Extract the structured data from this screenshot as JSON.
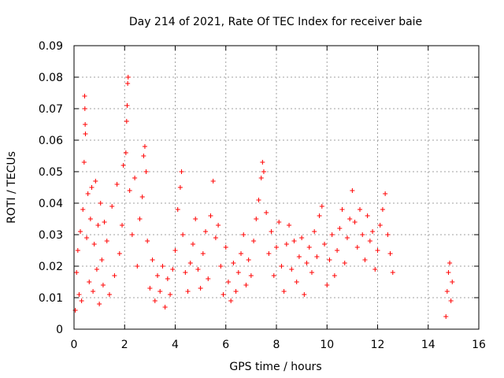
{
  "chart_data": {
    "type": "scatter",
    "title": "Day 214 of 2021, Rate Of TEC Index for receiver baie",
    "xlabel": "GPS time / hours",
    "ylabel": "ROTI / TECUs",
    "xlim": [
      0,
      16
    ],
    "ylim": [
      0,
      0.09
    ],
    "x_ticks": [
      "0",
      "2",
      "4",
      "6",
      "8",
      "10",
      "12",
      "14",
      "16"
    ],
    "y_ticks": [
      "0",
      "0.01",
      "0.02",
      "0.03",
      "0.04",
      "0.05",
      "0.06",
      "0.07",
      "0.08",
      "0.09"
    ],
    "grid": true,
    "marker": "+",
    "color": "#ff0000",
    "series": [
      {
        "points": [
          [
            0.05,
            0.006
          ],
          [
            0.1,
            0.018
          ],
          [
            0.15,
            0.025
          ],
          [
            0.2,
            0.011
          ],
          [
            0.25,
            0.031
          ],
          [
            0.3,
            0.009
          ],
          [
            0.35,
            0.038
          ],
          [
            0.4,
            0.053
          ],
          [
            0.42,
            0.074
          ],
          [
            0.43,
            0.07
          ],
          [
            0.44,
            0.065
          ],
          [
            0.45,
            0.062
          ],
          [
            0.5,
            0.029
          ],
          [
            0.55,
            0.043
          ],
          [
            0.6,
            0.015
          ],
          [
            0.65,
            0.035
          ],
          [
            0.7,
            0.045
          ],
          [
            0.75,
            0.012
          ],
          [
            0.8,
            0.027
          ],
          [
            0.85,
            0.047
          ],
          [
            0.9,
            0.019
          ],
          [
            0.95,
            0.033
          ],
          [
            1.0,
            0.008
          ],
          [
            1.05,
            0.04
          ],
          [
            1.1,
            0.022
          ],
          [
            1.15,
            0.014
          ],
          [
            1.2,
            0.034
          ],
          [
            1.3,
            0.028
          ],
          [
            1.4,
            0.011
          ],
          [
            1.5,
            0.039
          ],
          [
            1.6,
            0.017
          ],
          [
            1.7,
            0.046
          ],
          [
            1.8,
            0.024
          ],
          [
            1.9,
            0.033
          ],
          [
            1.95,
            0.052
          ],
          [
            2.05,
            0.056
          ],
          [
            2.08,
            0.066
          ],
          [
            2.1,
            0.071
          ],
          [
            2.12,
            0.078
          ],
          [
            2.14,
            0.08
          ],
          [
            2.2,
            0.044
          ],
          [
            2.3,
            0.03
          ],
          [
            2.4,
            0.048
          ],
          [
            2.5,
            0.02
          ],
          [
            2.6,
            0.035
          ],
          [
            2.7,
            0.042
          ],
          [
            2.75,
            0.055
          ],
          [
            2.8,
            0.058
          ],
          [
            2.85,
            0.05
          ],
          [
            2.9,
            0.028
          ],
          [
            3.0,
            0.013
          ],
          [
            3.1,
            0.022
          ],
          [
            3.2,
            0.009
          ],
          [
            3.3,
            0.017
          ],
          [
            3.4,
            0.012
          ],
          [
            3.5,
            0.02
          ],
          [
            3.6,
            0.007
          ],
          [
            3.7,
            0.016
          ],
          [
            3.8,
            0.011
          ],
          [
            3.9,
            0.019
          ],
          [
            4.0,
            0.025
          ],
          [
            4.1,
            0.038
          ],
          [
            4.2,
            0.045
          ],
          [
            4.25,
            0.05
          ],
          [
            4.3,
            0.03
          ],
          [
            4.4,
            0.018
          ],
          [
            4.5,
            0.012
          ],
          [
            4.6,
            0.021
          ],
          [
            4.7,
            0.027
          ],
          [
            4.8,
            0.035
          ],
          [
            4.9,
            0.019
          ],
          [
            5.0,
            0.013
          ],
          [
            5.1,
            0.024
          ],
          [
            5.2,
            0.031
          ],
          [
            5.3,
            0.016
          ],
          [
            5.4,
            0.036
          ],
          [
            5.5,
            0.047
          ],
          [
            5.6,
            0.029
          ],
          [
            5.7,
            0.033
          ],
          [
            5.8,
            0.02
          ],
          [
            5.9,
            0.011
          ],
          [
            6.0,
            0.026
          ],
          [
            6.1,
            0.015
          ],
          [
            6.2,
            0.009
          ],
          [
            6.3,
            0.021
          ],
          [
            6.4,
            0.012
          ],
          [
            6.5,
            0.018
          ],
          [
            6.6,
            0.024
          ],
          [
            6.7,
            0.03
          ],
          [
            6.8,
            0.014
          ],
          [
            6.9,
            0.022
          ],
          [
            7.0,
            0.017
          ],
          [
            7.1,
            0.028
          ],
          [
            7.2,
            0.035
          ],
          [
            7.3,
            0.041
          ],
          [
            7.4,
            0.048
          ],
          [
            7.45,
            0.053
          ],
          [
            7.5,
            0.05
          ],
          [
            7.6,
            0.037
          ],
          [
            7.7,
            0.024
          ],
          [
            7.8,
            0.031
          ],
          [
            7.9,
            0.017
          ],
          [
            8.0,
            0.026
          ],
          [
            8.1,
            0.034
          ],
          [
            8.2,
            0.02
          ],
          [
            8.3,
            0.012
          ],
          [
            8.4,
            0.027
          ],
          [
            8.5,
            0.033
          ],
          [
            8.6,
            0.019
          ],
          [
            8.7,
            0.028
          ],
          [
            8.8,
            0.015
          ],
          [
            8.9,
            0.023
          ],
          [
            9.0,
            0.029
          ],
          [
            9.1,
            0.011
          ],
          [
            9.2,
            0.021
          ],
          [
            9.3,
            0.026
          ],
          [
            9.4,
            0.018
          ],
          [
            9.5,
            0.031
          ],
          [
            9.6,
            0.023
          ],
          [
            9.7,
            0.036
          ],
          [
            9.8,
            0.039
          ],
          [
            9.9,
            0.027
          ],
          [
            10.0,
            0.014
          ],
          [
            10.1,
            0.022
          ],
          [
            10.2,
            0.03
          ],
          [
            10.3,
            0.017
          ],
          [
            10.4,
            0.025
          ],
          [
            10.5,
            0.032
          ],
          [
            10.6,
            0.038
          ],
          [
            10.7,
            0.021
          ],
          [
            10.8,
            0.029
          ],
          [
            10.9,
            0.035
          ],
          [
            11.0,
            0.044
          ],
          [
            11.1,
            0.034
          ],
          [
            11.2,
            0.026
          ],
          [
            11.3,
            0.038
          ],
          [
            11.4,
            0.03
          ],
          [
            11.5,
            0.022
          ],
          [
            11.6,
            0.036
          ],
          [
            11.7,
            0.028
          ],
          [
            11.8,
            0.031
          ],
          [
            11.9,
            0.019
          ],
          [
            12.0,
            0.025
          ],
          [
            12.1,
            0.033
          ],
          [
            12.2,
            0.038
          ],
          [
            12.3,
            0.043
          ],
          [
            12.4,
            0.03
          ],
          [
            12.5,
            0.024
          ],
          [
            12.6,
            0.018
          ],
          [
            14.7,
            0.004
          ],
          [
            14.75,
            0.012
          ],
          [
            14.8,
            0.018
          ],
          [
            14.85,
            0.021
          ],
          [
            14.9,
            0.009
          ],
          [
            14.95,
            0.015
          ]
        ]
      }
    ]
  }
}
